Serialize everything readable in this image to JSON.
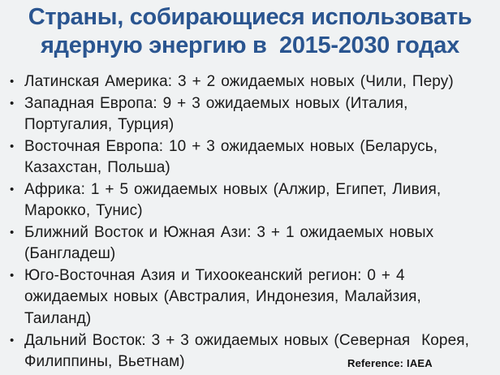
{
  "slide": {
    "title_lines": [
      "Страны, собирающиеся использовать",
      "ядерную энергию в  2015-2030 годах"
    ],
    "bullet_glyph": "•",
    "bullets": [
      {
        "lines": [
          "Латинская Америка: 3 + 2 ожидаемых новых (Чили, Перу)"
        ]
      },
      {
        "lines": [
          "Западная Европа: 9 + 3 ожидаемых новых (Италия,",
          "Португалия, Турция)"
        ]
      },
      {
        "lines": [
          "Восточная Европа: 10 + 3 ожидаемых новых (Беларусь,",
          "Казахстан, Польша)"
        ]
      },
      {
        "lines": [
          "Африка: 1 + 5 ожидаемых новых (Алжир, Египет, Ливия,",
          "Марокко, Тунис)"
        ]
      },
      {
        "lines": [
          "Ближний Восток и Южная Ази: 3 + 1 ожидаемых новых",
          "(Бангладеш)"
        ]
      },
      {
        "lines": [
          "Юго-Восточная Азия и Тихоокеанский регион: 0 + 4",
          "ожидаемых новых (Австралия, Индонезия, Малайзия,",
          "Таиланд)"
        ]
      },
      {
        "lines": [
          "Дальний Восток: 3 + 3 ожидаемых новых (Северная  Корея,",
          "Филиппины, Вьетнам)"
        ]
      }
    ],
    "reference_label": "Reference: IAEA",
    "colors": {
      "title_blue": "#2a5590",
      "body_text": "#1a1a1a",
      "background": "#f0f2f3",
      "reference_text": "#111111"
    }
  }
}
